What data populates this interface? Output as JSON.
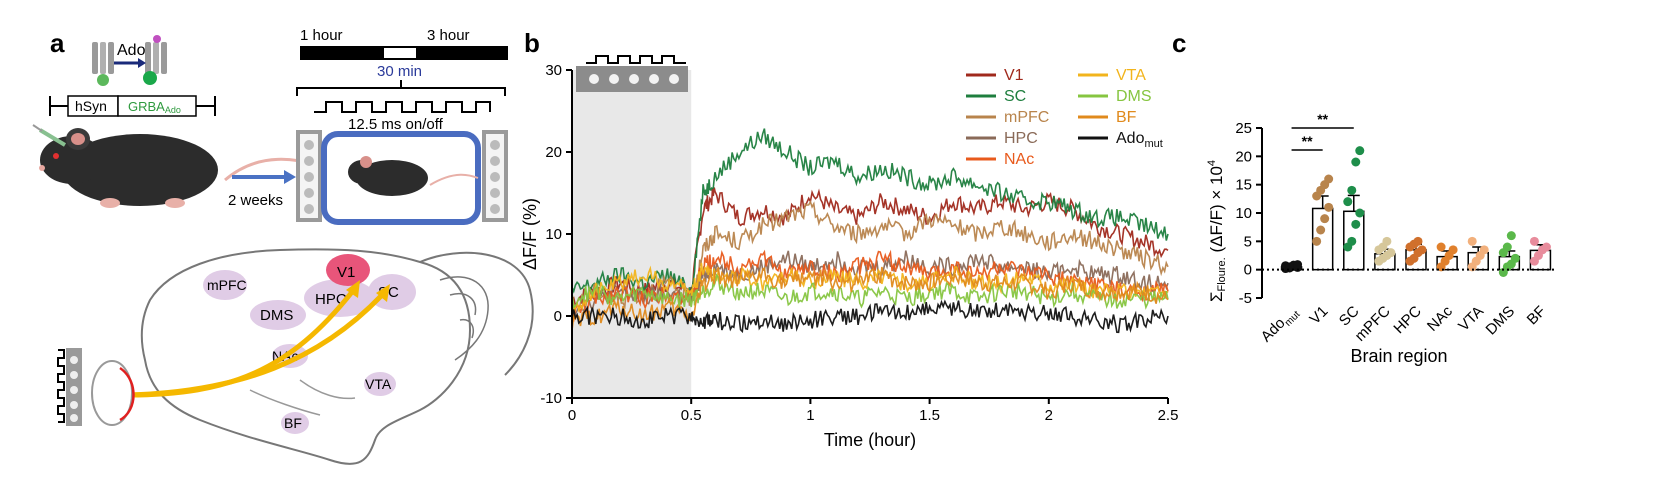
{
  "panels": {
    "a": {
      "letter": "a",
      "receptor_label": "Ado",
      "construct": {
        "promoter": "hSyn",
        "sensor_prefix": "GRBA",
        "sensor_sub": "Ado"
      },
      "time_start": "1 hour",
      "time_end": "3 hour",
      "block_duration": "30 min",
      "pulse_label": "12.5 ms on/off",
      "wait_label": "2 weeks",
      "brain_regions": [
        "mPFC",
        "V1",
        "HPC",
        "SC",
        "DMS",
        "NAc",
        "VTA",
        "BF"
      ]
    },
    "b": {
      "letter": "b",
      "xlabel": "Time (hour)",
      "ylabel": "ΔF/F (%)"
    },
    "c": {
      "letter": "c",
      "xlabel": "Brain region",
      "ylabel_main": "Σ",
      "ylabel_sub": "Floure.",
      "ylabel_tail": "(ΔF/F) × 10",
      "ylabel_sup": "4",
      "significance": [
        "**",
        "**"
      ]
    }
  },
  "chart_data": [
    {
      "type": "line",
      "panel": "b",
      "xlabel": "Time (hour)",
      "ylabel": "ΔF/F (%)",
      "xlim": [
        0,
        2.5
      ],
      "ylim": [
        -10,
        30
      ],
      "xticks": [
        0,
        0.5,
        1,
        1.5,
        2,
        2.5
      ],
      "xtick_labels": [
        "0",
        "0.5",
        "1",
        "1.5",
        "2",
        "2.5"
      ],
      "yticks": [
        -10,
        0,
        10,
        20,
        30
      ],
      "ytick_labels": [
        "-10",
        "0",
        "10",
        "20",
        "30"
      ],
      "shaded_region_x": [
        0,
        0.5
      ],
      "legend_placement": "top-right",
      "x": [
        0,
        0.1,
        0.2,
        0.3,
        0.4,
        0.5,
        0.55,
        0.6,
        0.7,
        0.8,
        0.9,
        1.0,
        1.1,
        1.2,
        1.3,
        1.4,
        1.5,
        1.6,
        1.7,
        1.8,
        1.9,
        2.0,
        2.1,
        2.2,
        2.3,
        2.4,
        2.5
      ],
      "series": [
        {
          "name": "V1",
          "color": "#a0291c",
          "values": [
            2,
            3,
            4,
            3,
            4,
            3,
            13,
            15,
            12,
            13,
            12,
            15,
            13,
            12,
            14,
            13,
            12,
            14,
            13,
            14,
            13,
            14,
            13,
            11,
            10,
            9,
            8
          ]
        },
        {
          "name": "SC",
          "color": "#1e7e3e",
          "values": [
            3,
            4,
            5,
            4,
            5,
            3,
            15,
            17,
            20,
            22,
            20,
            18,
            19,
            17,
            18,
            17,
            16,
            17,
            16,
            15,
            14,
            14,
            13,
            12,
            12,
            11,
            10
          ]
        },
        {
          "name": "mPFC",
          "color": "#b8844c",
          "values": [
            1,
            3,
            2,
            3,
            4,
            2,
            8,
            10,
            9,
            11,
            12,
            13,
            11,
            10,
            11,
            10,
            12,
            11,
            10,
            11,
            10,
            9,
            10,
            9,
            8,
            7,
            6
          ]
        },
        {
          "name": "HPC",
          "color": "#8a6a58",
          "values": [
            1,
            2,
            3,
            2,
            3,
            2,
            5,
            6,
            5,
            6,
            7,
            6,
            7,
            6,
            6,
            7,
            6,
            6,
            7,
            6,
            6,
            5,
            6,
            5,
            5,
            4,
            4
          ]
        },
        {
          "name": "NAc",
          "color": "#e85a1c",
          "values": [
            0,
            2,
            3,
            2,
            3,
            2,
            6,
            7,
            6,
            7,
            5,
            6,
            5,
            6,
            7,
            6,
            5,
            6,
            5,
            6,
            5,
            5,
            4,
            4,
            3,
            3,
            3
          ]
        },
        {
          "name": "VTA",
          "color": "#f2b41c",
          "values": [
            1,
            3,
            4,
            5,
            4,
            3,
            6,
            5,
            5,
            4,
            5,
            4,
            5,
            4,
            5,
            4,
            4,
            5,
            4,
            4,
            5,
            4,
            4,
            3,
            3,
            3,
            3
          ]
        },
        {
          "name": "DMS",
          "color": "#86c540",
          "values": [
            2,
            3,
            2,
            3,
            2,
            2,
            3,
            4,
            3,
            3,
            2,
            3,
            3,
            2,
            3,
            2,
            3,
            3,
            2,
            3,
            3,
            2,
            3,
            2,
            2,
            2,
            2
          ]
        },
        {
          "name": "BF",
          "color": "#e08a1c",
          "values": [
            -1,
            0,
            1,
            0,
            1,
            0,
            4,
            5,
            4,
            5,
            4,
            5,
            4,
            4,
            5,
            4,
            4,
            5,
            4,
            4,
            4,
            3,
            4,
            3,
            3,
            3,
            2
          ]
        },
        {
          "name": "Ado",
          "name_sub": "mut",
          "color": "#111111",
          "values": [
            0,
            0,
            0,
            -0.5,
            0,
            0,
            -1,
            -0.5,
            -1,
            -0.5,
            -1,
            -0.5,
            0,
            0,
            0.5,
            0.5,
            1,
            1,
            0.5,
            1,
            0.5,
            0.5,
            0,
            -0.5,
            -1,
            -0.5,
            0
          ]
        }
      ]
    },
    {
      "type": "bar",
      "panel": "c",
      "xlabel": "Brain region",
      "ylim": [
        -5,
        25
      ],
      "yticks": [
        -5,
        0,
        5,
        10,
        15,
        20,
        25
      ],
      "ytick_labels": [
        "-5",
        "0",
        "5",
        "10",
        "15",
        "20",
        "25"
      ],
      "categories": [
        "Ado",
        "V1",
        "SC",
        "mPFC",
        "HPC",
        "NAc",
        "VTA",
        "DMS",
        "BF"
      ],
      "category_subs": [
        "mut",
        "",
        "",
        "",
        "",
        "",
        "",
        "",
        ""
      ],
      "values": [
        0.5,
        10.8,
        10.3,
        2.8,
        3.5,
        2.3,
        3.0,
        2.3,
        3.4
      ],
      "errors": [
        0.3,
        2.2,
        2.8,
        0.8,
        1.0,
        1.0,
        1.0,
        1.0,
        1.0
      ],
      "bar_fill": [
        "#000000",
        "#ffffff",
        "#ffffff",
        "#ffffff",
        "#ffffff",
        "#ffffff",
        "#ffffff",
        "#ffffff",
        "#ffffff"
      ],
      "point_colors": [
        "#111111",
        "#b8844c",
        "#1e8e4a",
        "#d6c79a",
        "#d0702c",
        "#e0802c",
        "#f2b07c",
        "#5ab84a",
        "#e88c9c"
      ],
      "points": [
        [
          0.2,
          0.5,
          0.8,
          0.4,
          0.7,
          0.3,
          0.6,
          0.9,
          0.5,
          0.4
        ],
        [
          5,
          7,
          9,
          11,
          13,
          14,
          15,
          16
        ],
        [
          4,
          5,
          8,
          10,
          12,
          14,
          19,
          21
        ],
        [
          1.5,
          2,
          2.5,
          3,
          3.5,
          4,
          5
        ],
        [
          1.5,
          2,
          3,
          3.5,
          4,
          4.5,
          5
        ],
        [
          0.5,
          1.5,
          2.5,
          3.5,
          4
        ],
        [
          0.5,
          1.5,
          2.5,
          3.5,
          5
        ],
        [
          -0.5,
          0.5,
          1,
          2,
          3,
          4,
          6
        ],
        [
          1.5,
          2.5,
          3.5,
          4,
          5
        ]
      ],
      "significance_pairs": [
        [
          "Ado",
          "V1"
        ],
        [
          "Ado",
          "SC"
        ]
      ]
    }
  ]
}
